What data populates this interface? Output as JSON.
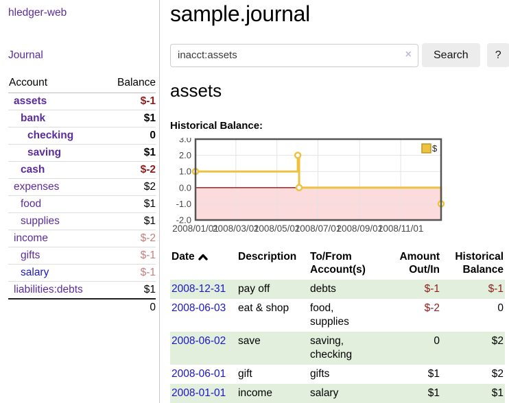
{
  "colors": {
    "purple": "#5b2c9e",
    "blue": "#1a16c8",
    "neg": "#8f1d1d",
    "neg_soft": "#c17f7f",
    "row_green": "#e2efdc",
    "clear_x": "#c8badd",
    "chart_gold": "#edc240",
    "chart_pink": "#fbdbdb",
    "chart_zero": "#9e0d0d"
  },
  "sidebar": {
    "brand": "hledger-web",
    "journal_link": "Journal",
    "accounts_header": {
      "account": "Account",
      "balance": "Balance"
    },
    "accounts": [
      {
        "name": "assets",
        "depth": 1,
        "bold": true,
        "balance": "$-1",
        "tone": "neg",
        "link": "purple"
      },
      {
        "name": "bank",
        "depth": 2,
        "bold": true,
        "balance": "$1",
        "tone": "pos",
        "link": "purple"
      },
      {
        "name": "checking",
        "depth": 3,
        "bold": true,
        "balance": "0",
        "tone": "pos",
        "link": "purple"
      },
      {
        "name": "saving",
        "depth": 3,
        "bold": true,
        "balance": "$1",
        "tone": "pos",
        "link": "purple"
      },
      {
        "name": "cash",
        "depth": 2,
        "bold": true,
        "balance": "$-2",
        "tone": "neg",
        "link": "purple"
      },
      {
        "name": "expenses",
        "depth": 1,
        "bold": false,
        "balance": "$2",
        "tone": "pos",
        "link": "purple"
      },
      {
        "name": "food",
        "depth": 2,
        "bold": false,
        "balance": "$1",
        "tone": "pos",
        "link": "purple"
      },
      {
        "name": "supplies",
        "depth": 2,
        "bold": false,
        "balance": "$1",
        "tone": "pos",
        "link": "purple"
      },
      {
        "name": "income",
        "depth": 1,
        "bold": false,
        "balance": "$-2",
        "tone": "neg-soft",
        "link": "purple"
      },
      {
        "name": "gifts",
        "depth": 2,
        "bold": false,
        "balance": "$-1",
        "tone": "neg-soft",
        "link": "purple"
      },
      {
        "name": "salary",
        "depth": 2,
        "bold": false,
        "balance": "$-1",
        "tone": "neg-soft",
        "link": "blue"
      },
      {
        "name": "liabilities:debts",
        "depth": 1,
        "bold": false,
        "balance": "$1",
        "tone": "pos",
        "link": "purple"
      }
    ],
    "total": "0"
  },
  "header": {
    "title": "sample.journal"
  },
  "search": {
    "value": "inacct:assets",
    "clear_icon": "×",
    "button": "Search",
    "help_button": "?"
  },
  "account_page": {
    "title": "assets",
    "chart_label": "Historical Balance:"
  },
  "chart_data": {
    "type": "line",
    "style": "step-after with markers",
    "legend": "$",
    "legend_position": "top-right",
    "grid": true,
    "ylim": [
      -2,
      3
    ],
    "y_ticks": [
      3.0,
      2.0,
      1.0,
      0.0,
      -1.0,
      -2.0
    ],
    "y_tick_labels": [
      "3.0",
      "2.0",
      "1.0",
      "0.0",
      "-1.0",
      "-2.0"
    ],
    "x_start": "2008-01-01",
    "x_end": "2008-12-31",
    "x_tick_labels": [
      "2008/01/01",
      "2008/03/01",
      "2008/05/01",
      "2008/07/01",
      "2008/09/01",
      "2008/11/01"
    ],
    "x_tick_dates": [
      "2008-01-01",
      "2008-03-01",
      "2008-05-01",
      "2008-07-01",
      "2008-09-01",
      "2008-11-01"
    ],
    "series": [
      {
        "name": "$",
        "points": [
          {
            "x": "2008-01-01",
            "y": 1
          },
          {
            "x": "2008-06-01",
            "y": 2
          },
          {
            "x": "2008-06-03",
            "y": 0
          },
          {
            "x": "2008-12-31",
            "y": -1
          }
        ]
      }
    ],
    "negative_region_shaded": true
  },
  "transactions": {
    "headers": {
      "date": "Date",
      "description": "Description",
      "accounts": "To/From Account(s)",
      "amount": "Amount Out/In",
      "balance": "Historical Balance"
    },
    "rows": [
      {
        "date": "2008-12-31",
        "description": "pay off",
        "accounts": "debts",
        "amount": "$-1",
        "amount_neg": true,
        "balance": "$-1",
        "balance_neg": true
      },
      {
        "date": "2008-06-03",
        "description": "eat & shop",
        "accounts": "food, supplies",
        "amount": "$-2",
        "amount_neg": true,
        "balance": "0",
        "balance_neg": false
      },
      {
        "date": "2008-06-02",
        "description": "save",
        "accounts": "saving, checking",
        "amount": "0",
        "amount_neg": false,
        "balance": "$2",
        "balance_neg": false
      },
      {
        "date": "2008-06-01",
        "description": "gift",
        "accounts": "gifts",
        "amount": "$1",
        "amount_neg": false,
        "balance": "$2",
        "balance_neg": false
      },
      {
        "date": "2008-01-01",
        "description": "income",
        "accounts": "salary",
        "amount": "$1",
        "amount_neg": false,
        "balance": "$1",
        "balance_neg": false
      }
    ]
  }
}
